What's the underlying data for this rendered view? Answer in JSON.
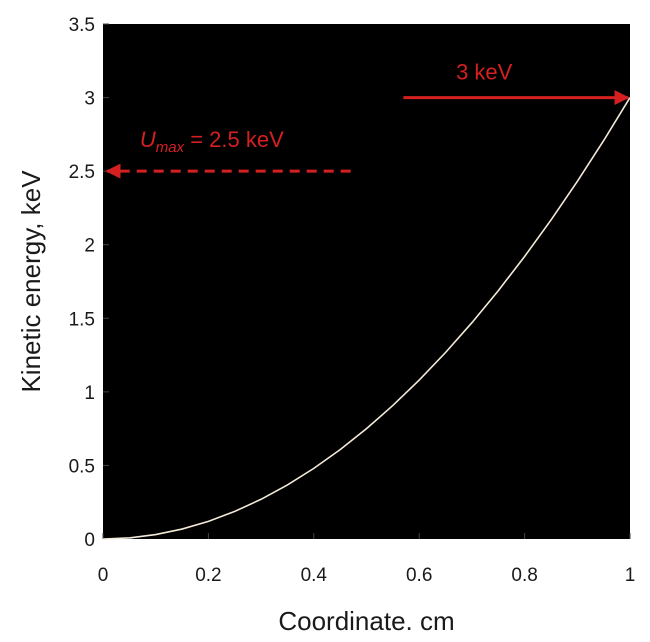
{
  "chart_data": {
    "type": "line",
    "title": "",
    "xlabel": "Coordinate. cm",
    "ylabel": "Kinetic energy, keV",
    "xlim": [
      0,
      1
    ],
    "ylim": [
      0,
      3.5
    ],
    "x_ticks": [
      "0",
      "0.2",
      "0.4",
      "0.6",
      "0.8",
      "1"
    ],
    "y_ticks": [
      "0",
      "0.5",
      "1",
      "1.5",
      "2",
      "2.5",
      "3",
      "3.5"
    ],
    "grid": false,
    "legend": "none",
    "series": [
      {
        "x": [
          0,
          0.05,
          0.1,
          0.15,
          0.2,
          0.25,
          0.3,
          0.35,
          0.4,
          0.45,
          0.5,
          0.55,
          0.6,
          0.65,
          0.7,
          0.75,
          0.8,
          0.85,
          0.9,
          0.95,
          1.0
        ],
        "y": [
          0.0,
          0.0075,
          0.03,
          0.0675,
          0.12,
          0.1875,
          0.27,
          0.3675,
          0.48,
          0.6075,
          0.75,
          0.9075,
          1.08,
          1.2675,
          1.47,
          1.6875,
          1.92,
          2.1675,
          2.43,
          2.7075,
          3.0
        ]
      }
    ],
    "annotations": [
      {
        "kind": "dashed-arrow",
        "symbol": "U",
        "subscript": "max",
        "text": " = 2.5 keV",
        "y": 2.5,
        "x_from": 0.47,
        "x_to": 0
      },
      {
        "kind": "solid-arrow",
        "text": "3 keV",
        "y": 3.0,
        "x_from": 0.57,
        "x_to": 1.0
      }
    ],
    "colors": {
      "plot_background": "#000000",
      "line": "#f3ead8",
      "annotation": "#d42020",
      "text": "#1a1a1a"
    }
  }
}
